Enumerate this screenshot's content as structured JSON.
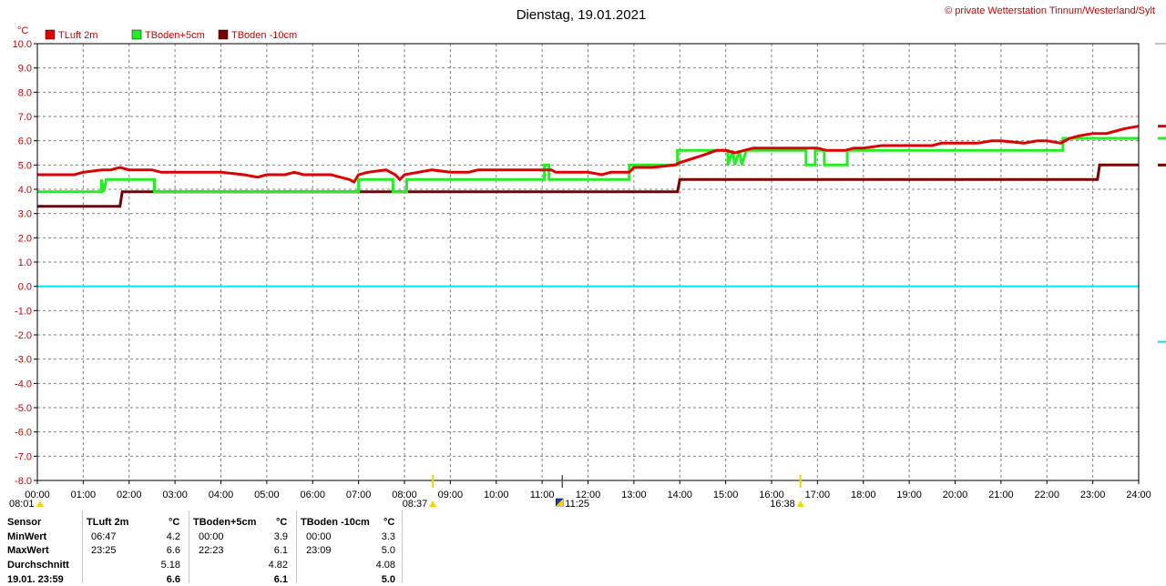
{
  "title": "Dienstag, 19.01.2021",
  "copyright": "© private Wetterstation Tinnum/Westerland/Sylt",
  "chart_data": {
    "type": "line",
    "y_unit": "°C",
    "ylim": [
      -8,
      10
    ],
    "y_ticks": [
      "10.0",
      "9.0",
      "8.0",
      "7.0",
      "6.0",
      "5.0",
      "4.0",
      "3.0",
      "2.0",
      "1.0",
      "0.0",
      "-1.0",
      "-2.0",
      "-3.0",
      "-4.0",
      "-5.0",
      "-6.0",
      "-7.0",
      "-8.0"
    ],
    "x_ticks": [
      "00:00",
      "01:00",
      "02:00",
      "03:00",
      "04:00",
      "05:00",
      "06:00",
      "07:00",
      "08:00",
      "09:00",
      "10:00",
      "11:00",
      "12:00",
      "13:00",
      "14:00",
      "15:00",
      "16:00",
      "17:00",
      "18:00",
      "19:00",
      "20:00",
      "21:00",
      "22:00",
      "23:00",
      "24:00"
    ],
    "xlim": [
      0,
      24
    ],
    "grid": true,
    "zero_line_color": "#00e5ee",
    "legend_position": "top-left",
    "series": [
      {
        "name": "TLuft 2m",
        "color": "#e00000",
        "points": [
          [
            0,
            4.6
          ],
          [
            0.8,
            4.6
          ],
          [
            1.0,
            4.7
          ],
          [
            1.4,
            4.8
          ],
          [
            1.6,
            4.8
          ],
          [
            1.8,
            4.9
          ],
          [
            2.0,
            4.8
          ],
          [
            2.5,
            4.8
          ],
          [
            2.7,
            4.7
          ],
          [
            3.5,
            4.7
          ],
          [
            4.0,
            4.7
          ],
          [
            4.5,
            4.6
          ],
          [
            4.8,
            4.5
          ],
          [
            5.0,
            4.6
          ],
          [
            5.4,
            4.6
          ],
          [
            5.6,
            4.7
          ],
          [
            5.8,
            4.6
          ],
          [
            6.2,
            4.6
          ],
          [
            6.4,
            4.6
          ],
          [
            6.6,
            4.5
          ],
          [
            6.8,
            4.4
          ],
          [
            6.9,
            4.3
          ],
          [
            7.0,
            4.6
          ],
          [
            7.2,
            4.7
          ],
          [
            7.6,
            4.8
          ],
          [
            7.8,
            4.6
          ],
          [
            7.9,
            4.4
          ],
          [
            8.0,
            4.6
          ],
          [
            8.3,
            4.7
          ],
          [
            8.6,
            4.8
          ],
          [
            9.0,
            4.7
          ],
          [
            9.4,
            4.7
          ],
          [
            9.6,
            4.8
          ],
          [
            10.0,
            4.8
          ],
          [
            11.0,
            4.8
          ],
          [
            11.2,
            4.8
          ],
          [
            11.3,
            4.7
          ],
          [
            12.0,
            4.7
          ],
          [
            12.3,
            4.6
          ],
          [
            12.5,
            4.7
          ],
          [
            12.9,
            4.7
          ],
          [
            13.0,
            4.9
          ],
          [
            13.4,
            4.9
          ],
          [
            13.9,
            5.0
          ],
          [
            14.0,
            5.1
          ],
          [
            14.5,
            5.4
          ],
          [
            14.8,
            5.6
          ],
          [
            15.0,
            5.6
          ],
          [
            15.2,
            5.5
          ],
          [
            15.4,
            5.6
          ],
          [
            15.6,
            5.7
          ],
          [
            16.0,
            5.7
          ],
          [
            17.0,
            5.7
          ],
          [
            17.2,
            5.6
          ],
          [
            17.6,
            5.6
          ],
          [
            17.8,
            5.7
          ],
          [
            18.0,
            5.7
          ],
          [
            18.4,
            5.8
          ],
          [
            18.8,
            5.8
          ],
          [
            19.2,
            5.8
          ],
          [
            19.5,
            5.8
          ],
          [
            19.7,
            5.9
          ],
          [
            20.0,
            5.9
          ],
          [
            20.5,
            5.9
          ],
          [
            20.8,
            6.0
          ],
          [
            21.0,
            6.0
          ],
          [
            21.5,
            5.9
          ],
          [
            21.8,
            6.0
          ],
          [
            22.0,
            6.0
          ],
          [
            22.3,
            5.9
          ],
          [
            22.5,
            6.1
          ],
          [
            22.7,
            6.2
          ],
          [
            23.0,
            6.3
          ],
          [
            23.3,
            6.3
          ],
          [
            23.5,
            6.4
          ],
          [
            23.7,
            6.5
          ],
          [
            24.0,
            6.6
          ]
        ]
      },
      {
        "name": "TBoden+5cm",
        "color": "#22ee22",
        "points": [
          [
            0,
            3.9
          ],
          [
            1.4,
            3.9
          ],
          [
            1.4,
            4.4
          ],
          [
            1.45,
            3.9
          ],
          [
            1.5,
            4.4
          ],
          [
            2.55,
            4.4
          ],
          [
            2.55,
            3.9
          ],
          [
            7.0,
            3.9
          ],
          [
            7.0,
            4.4
          ],
          [
            7.75,
            4.4
          ],
          [
            7.75,
            3.9
          ],
          [
            8.05,
            3.9
          ],
          [
            8.05,
            4.4
          ],
          [
            11.05,
            4.4
          ],
          [
            11.05,
            5.0
          ],
          [
            11.15,
            5.0
          ],
          [
            11.15,
            4.4
          ],
          [
            12.9,
            4.4
          ],
          [
            12.9,
            5.0
          ],
          [
            13.95,
            5.0
          ],
          [
            13.95,
            5.6
          ],
          [
            15.05,
            5.6
          ],
          [
            15.05,
            5.0
          ],
          [
            15.15,
            5.6
          ],
          [
            15.2,
            5.0
          ],
          [
            15.3,
            5.6
          ],
          [
            15.35,
            5.0
          ],
          [
            15.45,
            5.6
          ],
          [
            16.75,
            5.6
          ],
          [
            16.75,
            5.0
          ],
          [
            16.95,
            5.0
          ],
          [
            16.95,
            5.6
          ],
          [
            17.15,
            5.6
          ],
          [
            17.15,
            5.0
          ],
          [
            17.65,
            5.0
          ],
          [
            17.65,
            5.6
          ],
          [
            22.35,
            5.6
          ],
          [
            22.35,
            6.1
          ],
          [
            24.0,
            6.1
          ]
        ]
      },
      {
        "name": "TBoden -10cm",
        "color": "#7a0000",
        "points": [
          [
            0,
            3.3
          ],
          [
            1.8,
            3.3
          ],
          [
            1.85,
            3.9
          ],
          [
            13.95,
            3.9
          ],
          [
            14.0,
            4.4
          ],
          [
            23.1,
            4.4
          ],
          [
            23.15,
            5.0
          ],
          [
            24.0,
            5.0
          ]
        ]
      }
    ],
    "markers": [
      {
        "time": "08:01",
        "hour": 0,
        "kind": "sunrise-icon"
      },
      {
        "time": "08:37",
        "hour": 8.62,
        "kind": "sunrise-icon"
      },
      {
        "time": "11:25",
        "hour": 11.42,
        "kind": "noon-icon"
      },
      {
        "time": "16:38",
        "hour": 16.63,
        "kind": "sunset-icon"
      }
    ]
  },
  "stats": {
    "headers": {
      "sensor": "Sensor",
      "s1": "TLuft 2m",
      "s2": "TBoden+5cm",
      "s3": "TBoden -10cm",
      "unit": "°C"
    },
    "rows": [
      {
        "label": "MinWert",
        "s1_time": "06:47",
        "s1_val": "4.2",
        "s2_time": "00:00",
        "s2_val": "3.9",
        "s3_time": "00:00",
        "s3_val": "3.3"
      },
      {
        "label": "MaxWert",
        "s1_time": "23:25",
        "s1_val": "6.6",
        "s2_time": "22:23",
        "s2_val": "6.1",
        "s3_time": "23:09",
        "s3_val": "5.0"
      },
      {
        "label": "Durchschnitt",
        "s1_time": "",
        "s1_val": "5.18",
        "s2_time": "",
        "s2_val": "4.82",
        "s3_time": "",
        "s3_val": "4.08"
      },
      {
        "label": "19.01. 23:59",
        "s1_time": "",
        "s1_val": "6.6",
        "s2_time": "",
        "s2_val": "6.1",
        "s3_time": "",
        "s3_val": "5.0"
      }
    ]
  }
}
